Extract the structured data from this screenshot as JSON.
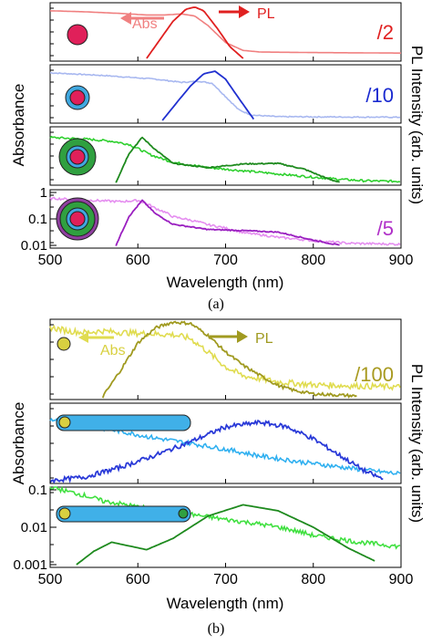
{
  "colors": {
    "a1_abs": "#f08080",
    "a1_pl": "#e02020",
    "a1_label": "#e02020",
    "a2_abs": "#a8b8f0",
    "a2_pl": "#2030d0",
    "a2_label": "#1a2ad0",
    "a3_abs": "#2ed02e",
    "a3_pl": "#1e8a1e",
    "a4_abs": "#e58ef0",
    "a4_pl": "#9a1fc0",
    "a4_label": "#b030c8",
    "b1_abs": "#e0dc50",
    "b1_pl": "#a09a20",
    "b1_label": "#a89a20",
    "b2_abs": "#30b0f0",
    "b2_pl": "#2a3ad8",
    "b3_abs": "#40e040",
    "b3_pl": "#1e8a1e",
    "core_magenta": "#e0205a",
    "shell_blue": "#40a8e0",
    "shell_green": "#30a040",
    "shell_purple": "#9040a0",
    "core_yellow": "#d8d040",
    "rod_blue": "#40b0e8",
    "tip_green": "#30a040"
  },
  "icons": [
    "quantum-dot-core-icon",
    "core-shell-icon",
    "core-shell-shell-icon",
    "core-shell-shell-shell-icon",
    "nanorod-icon",
    "nanorod-with-tip-icon"
  ],
  "chart_data": [
    {
      "type": "line",
      "panel_label": "(a)",
      "xlabel": "Wavelength (nm)",
      "ylabel_left": "Absorbance",
      "ylabel_right": "PL Intensity (arb. units)",
      "xlim": [
        500,
        900
      ],
      "x_ticks": [
        "500",
        "600",
        "700",
        "800",
        "900"
      ],
      "subplots": [
        {
          "scale_label": "/2",
          "abs_annotation": "Abs",
          "pl_annotation": "PL",
          "series": [
            {
              "kind": "abs",
              "x": [
                500,
                540,
                580,
                610,
                630,
                650,
                665,
                680,
                700,
                720,
                740,
                800,
                900
              ],
              "y": [
                0.9,
                0.88,
                0.85,
                0.82,
                0.82,
                0.84,
                0.8,
                0.62,
                0.3,
                0.15,
                0.12,
                0.11,
                0.1
              ],
              "noise": 0
            },
            {
              "kind": "pl",
              "x": [
                610,
                625,
                640,
                655,
                665,
                675,
                690,
                705,
                720
              ],
              "y": [
                0.0,
                0.35,
                0.7,
                0.93,
                0.97,
                0.9,
                0.58,
                0.22,
                0.0
              ],
              "noise": 0
            }
          ]
        },
        {
          "scale_label": "/10",
          "series": [
            {
              "kind": "abs",
              "x": [
                500,
                560,
                620,
                650,
                670,
                685,
                700,
                715,
                730,
                760,
                900
              ],
              "y": [
                0.9,
                0.85,
                0.78,
                0.72,
                0.74,
                0.7,
                0.45,
                0.2,
                0.1,
                0.07,
                0.06
              ],
              "noise": 0.01
            },
            {
              "kind": "pl",
              "x": [
                628,
                645,
                660,
                675,
                688,
                700,
                715,
                733
              ],
              "y": [
                0.0,
                0.35,
                0.65,
                0.88,
                0.93,
                0.78,
                0.42,
                0.0
              ],
              "noise": 0
            }
          ]
        },
        {
          "series": [
            {
              "kind": "abs",
              "x": [
                500,
                540,
                570,
                590,
                615,
                640,
                680,
                720,
                760,
                800,
                830,
                860,
                900
              ],
              "y": [
                0.85,
                0.82,
                0.78,
                0.72,
                0.52,
                0.38,
                0.28,
                0.22,
                0.16,
                0.1,
                0.06,
                0.03,
                0.02
              ],
              "noise": 0.02
            },
            {
              "kind": "pl",
              "x": [
                575,
                590,
                605,
                620,
                640,
                680,
                720,
                760,
                790,
                815,
                830
              ],
              "y": [
                0.0,
                0.55,
                0.85,
                0.62,
                0.36,
                0.28,
                0.35,
                0.36,
                0.25,
                0.08,
                0.0
              ],
              "noise": 0.01
            }
          ]
        },
        {
          "scale_label": "/5",
          "log_scale": true,
          "y_ticks": [
            "1",
            "0.1",
            "0.01"
          ],
          "series": [
            {
              "kind": "abs",
              "x": [
                500,
                550,
                580,
                600,
                620,
                640,
                680,
                720,
                760,
                800,
                840,
                900
              ],
              "y": [
                0.6,
                0.5,
                0.45,
                0.5,
                0.25,
                0.12,
                0.06,
                0.03,
                0.02,
                0.015,
                0.012,
                0.011
              ],
              "noise": 0.02,
              "logvals": true
            },
            {
              "kind": "pl",
              "x": [
                575,
                590,
                605,
                620,
                640,
                680,
                720,
                760,
                800,
                830
              ],
              "y": [
                0.0,
                0.55,
                0.85,
                0.6,
                0.4,
                0.3,
                0.28,
                0.25,
                0.1,
                0.0
              ],
              "noise": 0.01
            }
          ]
        }
      ]
    },
    {
      "type": "line",
      "panel_label": "(b)",
      "xlabel": "Wavelength (nm)",
      "ylabel_left": "Absorbance",
      "ylabel_right": "PL Intensity (arb. units)",
      "xlim": [
        500,
        900
      ],
      "x_ticks": [
        "500",
        "600",
        "700",
        "800",
        "900"
      ],
      "subplots": [
        {
          "scale_label": "/100",
          "abs_annotation": "Abs",
          "pl_annotation": "PL",
          "series": [
            {
              "kind": "abs",
              "x": [
                500,
                520,
                540,
                560,
                580,
                600,
                620,
                640,
                660,
                680,
                700,
                720,
                760,
                800,
                900
              ],
              "y": [
                0.93,
                0.88,
                0.86,
                0.88,
                0.86,
                0.85,
                0.84,
                0.83,
                0.78,
                0.6,
                0.4,
                0.28,
                0.2,
                0.16,
                0.13
              ],
              "noise": 0.04
            },
            {
              "kind": "pl",
              "x": [
                560,
                580,
                600,
                620,
                640,
                660,
                680,
                700,
                720,
                740,
                760,
                780,
                800,
                850
              ],
              "y": [
                0.0,
                0.35,
                0.72,
                0.92,
                1.0,
                0.98,
                0.82,
                0.6,
                0.42,
                0.28,
                0.15,
                0.08,
                0.04,
                0.01
              ],
              "noise": 0.02
            }
          ]
        },
        {
          "series": [
            {
              "kind": "abs",
              "x": [
                500,
                540,
                580,
                620,
                660,
                700,
                740,
                780,
                820,
                860,
                900
              ],
              "y": [
                0.82,
                0.74,
                0.66,
                0.57,
                0.5,
                0.42,
                0.33,
                0.26,
                0.2,
                0.14,
                0.09
              ],
              "noise": 0.03
            },
            {
              "kind": "pl",
              "x": [
                500,
                540,
                580,
                620,
                660,
                700,
                740,
                770,
                800,
                830,
                860,
                880
              ],
              "y": [
                0.0,
                0.05,
                0.18,
                0.34,
                0.52,
                0.72,
                0.78,
                0.72,
                0.56,
                0.34,
                0.12,
                0.02
              ],
              "noise": 0.03
            }
          ]
        },
        {
          "log_scale": true,
          "y_ticks": [
            "0.1",
            "0.01",
            "0.001"
          ],
          "series": [
            {
              "kind": "abs",
              "x": [
                500,
                520,
                560,
                600,
                640,
                700,
                760,
                800,
                850,
                900
              ],
              "y": [
                0.12,
                0.09,
                0.05,
                0.035,
                0.025,
                0.016,
                0.01,
                0.006,
                0.004,
                0.003
              ],
              "noise": 0.03,
              "logvals": true
            },
            {
              "kind": "pl",
              "x": [
                530,
                550,
                570,
                590,
                610,
                640,
                680,
                720,
                760,
                800,
                840,
                870
              ],
              "y": [
                0.0,
                0.18,
                0.3,
                0.25,
                0.2,
                0.35,
                0.65,
                0.8,
                0.72,
                0.5,
                0.22,
                0.05
              ],
              "noise": 0
            }
          ]
        }
      ]
    }
  ]
}
